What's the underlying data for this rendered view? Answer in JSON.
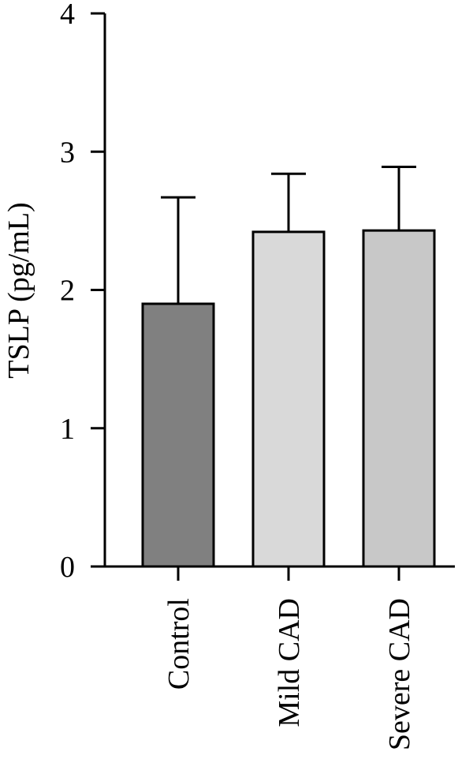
{
  "chart_data": {
    "type": "bar",
    "title": "",
    "xlabel": "",
    "ylabel": "TSLP (pg/mL)",
    "ylim": [
      0,
      4
    ],
    "yticks": [
      0,
      1,
      2,
      3,
      4
    ],
    "categories": [
      "Control",
      "Mild CAD",
      "Severe CAD"
    ],
    "values": [
      1.9,
      2.42,
      2.43
    ],
    "error_upper": [
      2.67,
      2.84,
      2.89
    ],
    "bar_colors": [
      "#808080",
      "#d9d9d9",
      "#c8c8c8"
    ],
    "grid": false,
    "legend": "none"
  }
}
